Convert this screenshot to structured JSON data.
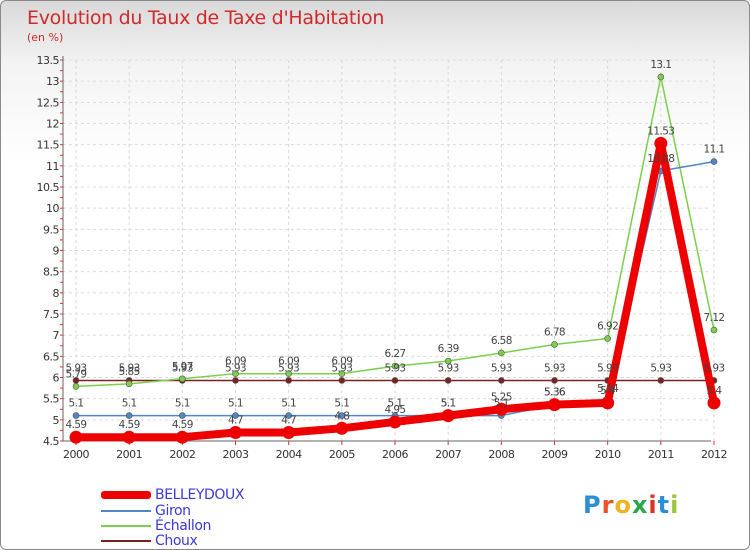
{
  "chart_data": {
    "type": "line",
    "title": "Evolution du Taux de Taxe d'Habitation",
    "subtitle": "(en %)",
    "xlabel": "",
    "ylabel": "",
    "x": [
      "2000",
      "2001",
      "2002",
      "2003",
      "2004",
      "2005",
      "2006",
      "2007",
      "2008",
      "2009",
      "2010",
      "2011",
      "2012"
    ],
    "ylim": [
      4.5,
      13.5
    ],
    "yticks": [
      "4.5",
      "5",
      "5.5",
      "6",
      "6.5",
      "7",
      "7.5",
      "8",
      "8.5",
      "9",
      "9.5",
      "10",
      "10.5",
      "11",
      "11.5",
      "12",
      "12.5",
      "13",
      "13.5"
    ],
    "series": [
      {
        "name": "BELLEYDOUX",
        "color": "#ee0000",
        "values": [
          4.59,
          4.59,
          4.59,
          4.7,
          4.7,
          4.8,
          4.95,
          5.1,
          5.25,
          5.36,
          5.4,
          11.53,
          5.4
        ],
        "labels": [
          "4.59",
          "4.59",
          "4.59",
          "4.7",
          "4.7",
          "4.8",
          "4.95",
          "5.1",
          "5.25",
          "5.36",
          "5.4",
          "11.53",
          "5.4"
        ]
      },
      {
        "name": "Giron",
        "color": "#4f86c6",
        "values": [
          5.1,
          5.1,
          5.1,
          5.1,
          5.1,
          5.1,
          5.1,
          5.1,
          5.1,
          5.36,
          5.44,
          10.88,
          11.1
        ],
        "labels": [
          "5.1",
          "5.1",
          "5.1",
          "5.1",
          "5.1",
          "5.1",
          "5.1",
          "5.1",
          "5.1",
          "5.36",
          "5.44",
          "10.88",
          "11.1"
        ]
      },
      {
        "name": "Échallon",
        "color": "#7ccf4a",
        "values": [
          5.79,
          5.85,
          5.97,
          6.09,
          6.09,
          6.09,
          6.27,
          6.39,
          6.58,
          6.78,
          6.92,
          13.1,
          7.12
        ],
        "labels": [
          "5.79",
          "5.85",
          "5.97",
          "6.09",
          "6.09",
          "6.09",
          "6.27",
          "6.39",
          "6.58",
          "6.78",
          "6.92",
          "13.1",
          "7.12"
        ]
      },
      {
        "name": "Choux",
        "color": "#7a2222",
        "values": [
          5.93,
          5.93,
          5.93,
          5.93,
          5.93,
          5.93,
          5.93,
          5.93,
          5.93,
          5.93,
          5.93,
          5.93,
          5.93
        ],
        "labels": [
          "5.93",
          "5.93",
          "5.93",
          "5.93",
          "5.93",
          "5.93",
          "5.93",
          "5.93",
          "5.93",
          "5.93",
          "5.93",
          "5.93",
          "5.93"
        ]
      }
    ]
  },
  "legend": [
    "BELLEYDOUX",
    "Giron",
    "Échallon",
    "Choux"
  ],
  "logo": {
    "text": "Proxiti",
    "colors": [
      "#2a8fd4",
      "#e8542a",
      "#f0b21e",
      "#2aa84a",
      "#e0331f",
      "#2a8fd4",
      "#9ac43a"
    ]
  }
}
